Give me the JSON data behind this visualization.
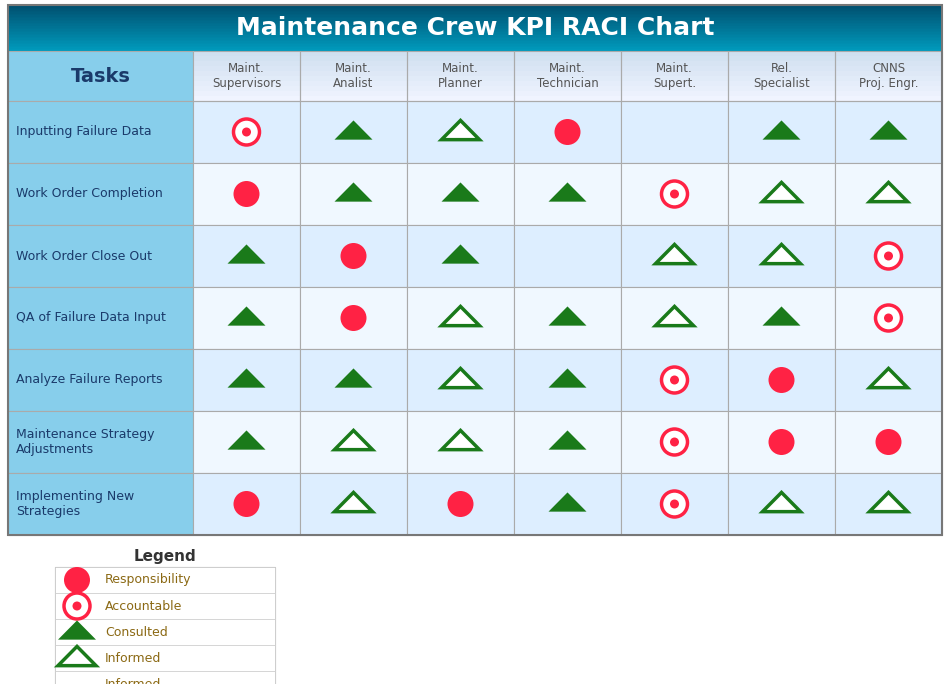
{
  "title": "Maintenance Crew KPI RACI Chart",
  "columns": [
    "Maint.\nSupervisors",
    "Maint.\nAnalist",
    "Maint.\nPlanner",
    "Maint.\nTechnician",
    "Maint.\nSupert.",
    "Rel.\nSpecialist",
    "CNNS\nProj. Engr."
  ],
  "tasks": [
    "Inputting Failure Data",
    "Work Order Completion",
    "Work Order Close Out",
    "QA of Failure Data Input",
    "Analyze Failure Reports",
    "Maintenance Strategy\nAdjustments",
    "Implementing New\nStrategies"
  ],
  "grid": [
    [
      "A",
      "C",
      "I",
      "R",
      "",
      "C",
      "C"
    ],
    [
      "R",
      "C",
      "C",
      "C",
      "A",
      "I",
      "I"
    ],
    [
      "C",
      "R",
      "C",
      "",
      "I",
      "I",
      "A"
    ],
    [
      "C",
      "R",
      "I",
      "C",
      "I",
      "C",
      "A"
    ],
    [
      "C",
      "C",
      "I",
      "C",
      "A",
      "R",
      "I"
    ],
    [
      "C",
      "I",
      "I",
      "C",
      "A",
      "R",
      "R"
    ],
    [
      "R",
      "I",
      "R",
      "C",
      "A",
      "I",
      "I"
    ]
  ],
  "legend_items": [
    {
      "symbol": "R",
      "label": "Responsibility"
    },
    {
      "symbol": "A",
      "label": "Accountable"
    },
    {
      "symbol": "C",
      "label": "Consulted"
    },
    {
      "symbol": "I",
      "label": "Informed"
    },
    {
      "symbol": "",
      "label": "Informed"
    }
  ],
  "title_color_top": "#005070",
  "title_color_bot": "#0099bb",
  "task_col_bg": "#87ceeb",
  "header_bg": "#c8dff0",
  "row_bg_light": "#ddeeff",
  "row_bg_white": "#f0f8ff",
  "red_fill": "#ff2244",
  "green_dark": "#1a7a1a",
  "border_color": "#aaaaaa",
  "task_text_color": "#1a3a6a",
  "header_text_color": "#555555",
  "legend_text_color": "#8B6914",
  "title_fontsize": 18,
  "header_fontsize": 8.5,
  "task_fontsize": 9,
  "legend_fontsize": 9
}
